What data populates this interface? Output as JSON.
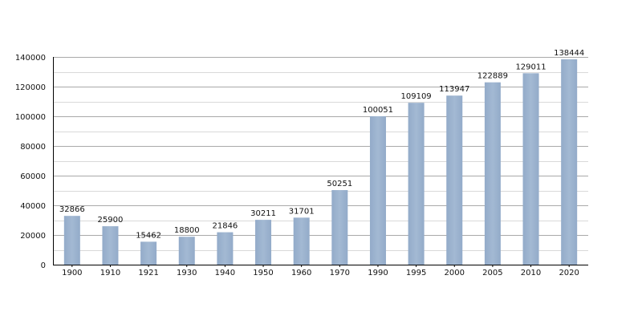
{
  "chart_data": {
    "type": "bar",
    "title": "",
    "xlabel": "",
    "ylabel": "",
    "categories": [
      "1900",
      "1910",
      "1921",
      "1930",
      "1940",
      "1950",
      "1960",
      "1970",
      "1990",
      "1995",
      "2000",
      "2005",
      "2010",
      "2020"
    ],
    "values": [
      32866,
      25900,
      15462,
      18800,
      21846,
      30211,
      31701,
      50251,
      100051,
      109109,
      113947,
      122889,
      129011,
      138444
    ],
    "ylim": [
      0,
      140000
    ],
    "yticks": [
      0,
      20000,
      40000,
      60000,
      80000,
      100000,
      120000,
      140000
    ],
    "grid": true,
    "data_labels": true,
    "bar_color": "#9cb3cf",
    "grid_color": "#a9a9a9",
    "minor_grid_color": "#d9d9d9"
  }
}
